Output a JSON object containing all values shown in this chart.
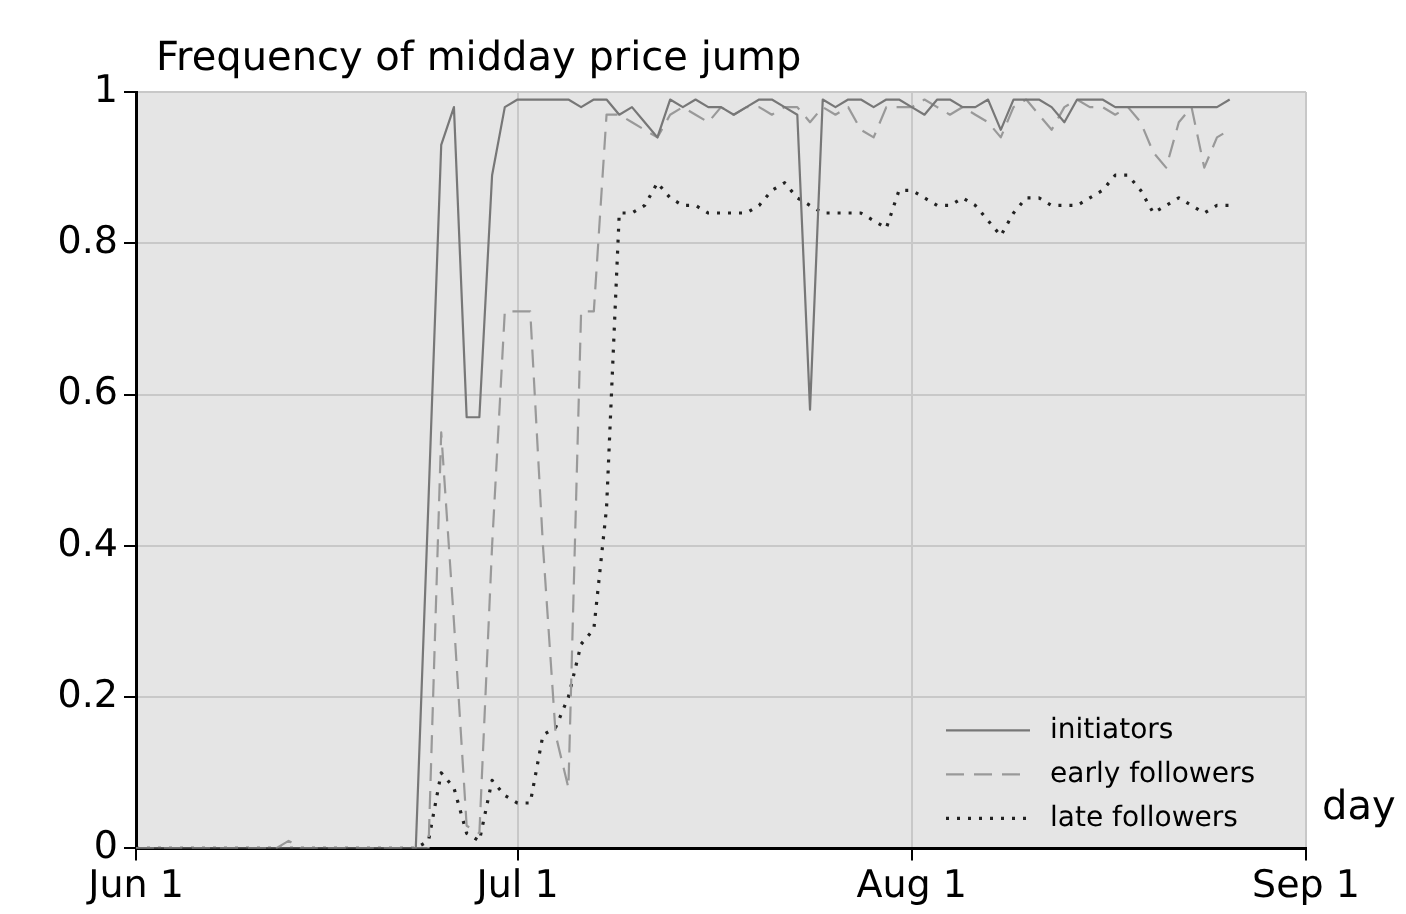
{
  "chart_data": {
    "type": "line",
    "title": "Frequency of midday price jump",
    "xlabel": "day",
    "x": [
      "--06-01",
      "--06-02",
      "--06-03",
      "--06-04",
      "--06-05",
      "--06-06",
      "--06-07",
      "--06-08",
      "--06-09",
      "--06-10",
      "--06-11",
      "--06-12",
      "--06-13",
      "--06-14",
      "--06-15",
      "--06-16",
      "--06-17",
      "--06-18",
      "--06-19",
      "--06-20",
      "--06-21",
      "--06-22",
      "--06-23",
      "--06-24",
      "--06-25",
      "--06-26",
      "--06-27",
      "--06-28",
      "--06-29",
      "--06-30",
      "--07-01",
      "--07-02",
      "--07-03",
      "--07-04",
      "--07-05",
      "--07-06",
      "--07-07",
      "--07-08",
      "--07-09",
      "--07-10",
      "--07-11",
      "--07-12",
      "--07-13",
      "--07-14",
      "--07-15",
      "--07-16",
      "--07-17",
      "--07-18",
      "--07-19",
      "--07-20",
      "--07-21",
      "--07-22",
      "--07-23",
      "--07-24",
      "--07-25",
      "--07-26",
      "--07-27",
      "--07-28",
      "--07-29",
      "--07-30",
      "--07-31",
      "--08-01",
      "--08-02",
      "--08-03",
      "--08-04",
      "--08-05",
      "--08-06",
      "--08-07",
      "--08-08",
      "--08-09",
      "--08-10",
      "--08-11",
      "--08-12",
      "--08-13",
      "--08-14",
      "--08-15",
      "--08-16",
      "--08-17",
      "--08-18",
      "--08-19",
      "--08-20",
      "--08-21",
      "--08-22",
      "--08-23",
      "--08-24",
      "--08-25",
      "--08-26"
    ],
    "xlim": [
      "--06-01",
      "--09-01"
    ],
    "xticks": [
      {
        "value": "--06-01",
        "label": "Jun 1"
      },
      {
        "value": "--07-01",
        "label": "Jul 1"
      },
      {
        "value": "--08-01",
        "label": "Aug 1"
      },
      {
        "value": "--09-01",
        "label": "Sep 1"
      }
    ],
    "ylim": [
      0,
      1
    ],
    "yticks": [
      0,
      0.2,
      0.4,
      0.6,
      0.8,
      1
    ],
    "grid": true,
    "legend": "bottom right",
    "marker": "none",
    "series": [
      {
        "name": "initiators",
        "color": "#777777",
        "line_style": "solid",
        "values": [
          0,
          0,
          0,
          0,
          0,
          0,
          0,
          0,
          0,
          0,
          0,
          0,
          0,
          0,
          0,
          0,
          0,
          0,
          0,
          0,
          0,
          0,
          0,
          0.46,
          0.93,
          0.98,
          0.57,
          0.57,
          0.89,
          0.98,
          0.99,
          0.99,
          0.99,
          0.99,
          0.99,
          0.98,
          0.99,
          0.99,
          0.97,
          0.98,
          0.96,
          0.94,
          0.99,
          0.98,
          0.99,
          0.98,
          0.98,
          0.97,
          0.98,
          0.99,
          0.99,
          0.98,
          0.97,
          0.58,
          0.99,
          0.98,
          0.99,
          0.99,
          0.98,
          0.99,
          0.99,
          0.98,
          0.97,
          0.99,
          0.99,
          0.98,
          0.98,
          0.99,
          0.95,
          0.99,
          0.99,
          0.99,
          0.98,
          0.96,
          0.99,
          0.99,
          0.99,
          0.98,
          0.98,
          0.98,
          0.98,
          0.98,
          0.98,
          0.98,
          0.98,
          0.98,
          0.99
        ]
      },
      {
        "name": "early followers",
        "color": "#999999",
        "line_style": "dashed",
        "values": [
          0,
          0,
          0,
          0,
          0,
          0,
          0,
          0,
          0,
          0,
          0,
          0,
          0.01,
          0,
          0,
          0,
          0,
          0,
          0,
          0,
          0,
          0,
          0,
          0,
          0.55,
          0.3,
          0.03,
          0.02,
          0.4,
          0.71,
          0.71,
          0.71,
          0.4,
          0.15,
          0.08,
          0.71,
          0.71,
          0.97,
          0.97,
          0.96,
          0.95,
          0.94,
          0.97,
          0.98,
          0.97,
          0.96,
          0.98,
          0.97,
          0.98,
          0.98,
          0.97,
          0.98,
          0.98,
          0.96,
          0.98,
          0.97,
          0.98,
          0.95,
          0.94,
          0.98,
          0.98,
          0.98,
          0.99,
          0.98,
          0.97,
          0.98,
          0.97,
          0.96,
          0.94,
          0.98,
          0.99,
          0.97,
          0.95,
          0.98,
          0.99,
          0.98,
          0.98,
          0.97,
          0.98,
          0.96,
          0.92,
          0.9,
          0.96,
          0.98,
          0.9,
          0.94,
          0.95
        ]
      },
      {
        "name": "late followers",
        "color": "#222222",
        "line_style": "dotted",
        "values": [
          0,
          0,
          0,
          0,
          0,
          0,
          0,
          0,
          0,
          0,
          0,
          0,
          0,
          0,
          0,
          0,
          0,
          0,
          0,
          0,
          0,
          0,
          0,
          0.01,
          0.1,
          0.08,
          0.02,
          0.01,
          0.09,
          0.07,
          0.06,
          0.06,
          0.15,
          0.16,
          0.2,
          0.27,
          0.29,
          0.45,
          0.84,
          0.84,
          0.85,
          0.88,
          0.86,
          0.85,
          0.85,
          0.84,
          0.84,
          0.84,
          0.84,
          0.85,
          0.87,
          0.88,
          0.86,
          0.85,
          0.84,
          0.84,
          0.84,
          0.84,
          0.83,
          0.82,
          0.87,
          0.87,
          0.86,
          0.85,
          0.85,
          0.86,
          0.85,
          0.83,
          0.81,
          0.84,
          0.86,
          0.86,
          0.85,
          0.85,
          0.85,
          0.86,
          0.87,
          0.89,
          0.89,
          0.87,
          0.84,
          0.85,
          0.86,
          0.85,
          0.84,
          0.85,
          0.85
        ]
      }
    ]
  }
}
